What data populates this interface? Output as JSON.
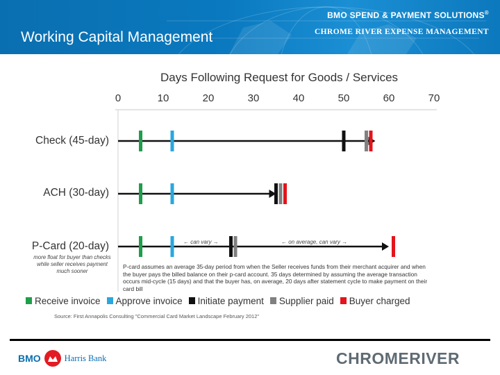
{
  "header": {
    "title": "Working Capital Management",
    "brand_line1": "BMO SPEND & PAYMENT SOLUTIONS",
    "brand_line1_mark": "®",
    "brand_line2": "CHROME RIVER EXPENSE MANAGEMENT"
  },
  "chart_data": {
    "type": "timeline",
    "title": "Days Following Request for Goods / Services",
    "x_ticks": [
      "0",
      "10",
      "20",
      "30",
      "40",
      "50",
      "60",
      "70"
    ],
    "xlim": [
      0,
      70
    ],
    "rows": [
      {
        "label": "Check (45-day)",
        "events": [
          {
            "type": "receive",
            "day": 5
          },
          {
            "type": "approve",
            "day": 12
          },
          {
            "type": "initiate",
            "day": 50
          },
          {
            "type": "supplier",
            "day": 55
          },
          {
            "type": "buyer",
            "day": 56
          }
        ],
        "arrow_end": 57
      },
      {
        "label": "ACH (30-day)",
        "events": [
          {
            "type": "receive",
            "day": 5
          },
          {
            "type": "approve",
            "day": 12
          },
          {
            "type": "initiate",
            "day": 35
          },
          {
            "type": "supplier",
            "day": 36
          },
          {
            "type": "buyer",
            "day": 37
          }
        ],
        "arrow_end": 35
      },
      {
        "label": "P-Card (20-day)",
        "events": [
          {
            "type": "receive",
            "day": 5
          },
          {
            "type": "approve",
            "day": 12
          },
          {
            "type": "initiate",
            "day": 25
          },
          {
            "type": "supplier",
            "day": 26
          },
          {
            "type": "buyer",
            "day": 61
          }
        ],
        "arrow_end": 60
      }
    ],
    "legend": [
      {
        "key": "receive",
        "label": "Receive invoice",
        "color": "#1f9e4b"
      },
      {
        "key": "approve",
        "label": "Approve invoice",
        "color": "#2aa7de"
      },
      {
        "key": "initiate",
        "label": "Initiate payment",
        "color": "#111111"
      },
      {
        "key": "supplier",
        "label": "Supplier paid",
        "color": "#808080"
      },
      {
        "key": "buyer",
        "label": "Buyer charged",
        "color": "#e3141c"
      }
    ],
    "annotations": {
      "can_vary": "← can vary →",
      "on_average": "← on average, can vary →",
      "pcard_note": "more float for buyer than checks while seller receives payment much sooner",
      "pcard_desc": "P-card assumes an average 35-day period from when the Seller receives funds from their merchant acquirer and when the buyer pays the billed balance on their p-card account.  35 days determined by assuming the average transaction occurs mid-cycle (15 days) and that the buyer has, on average, 20 days after statement cycle to make payment on their card bill"
    },
    "source": "Source: First Annapolis Consulting \"Commercial Card Market Landscape February 2012\""
  },
  "footer": {
    "bmo_text": "BMO",
    "harris_text": "Harris Bank",
    "chrome_river_text": "CHROMERIVER"
  }
}
